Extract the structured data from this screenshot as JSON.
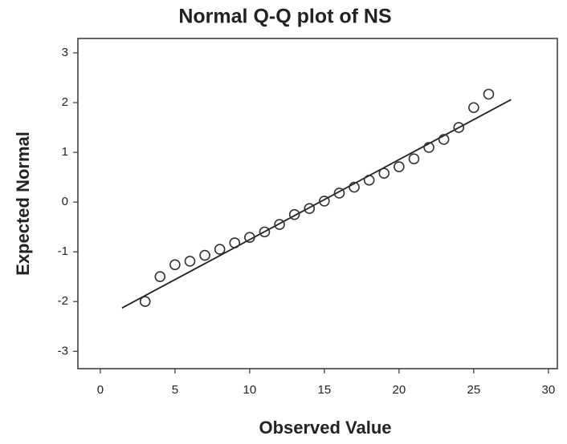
{
  "chart_data": {
    "type": "scatter",
    "title": "Normal Q-Q plot of NS",
    "x_label": "Observed Value",
    "y_label": "Expected Normal",
    "x": [
      3,
      4,
      5,
      6,
      7,
      8,
      9,
      10,
      11,
      12,
      13,
      14,
      15,
      16,
      17,
      18,
      19,
      20,
      21,
      22,
      23,
      24,
      25,
      26
    ],
    "values": [
      -2.0,
      -1.5,
      -1.26,
      -1.19,
      -1.07,
      -0.95,
      -0.82,
      -0.71,
      -0.6,
      -0.45,
      -0.25,
      -0.13,
      0.02,
      0.18,
      0.3,
      0.44,
      0.58,
      0.71,
      0.87,
      1.1,
      1.26,
      1.5,
      1.9,
      2.17
    ],
    "color": "#333333",
    "reference_line": {
      "x": [
        1.45,
        27.5
      ],
      "y": [
        -2.13,
        2.06
      ],
      "color": "#222222"
    },
    "xlim": [
      -1.5,
      30.6
    ],
    "xticks": [
      0,
      5,
      10,
      15,
      20,
      25,
      30
    ],
    "ylim": [
      -3.35,
      3.29
    ],
    "yticks": [
      -3,
      -2,
      -1,
      0,
      1,
      2,
      3
    ],
    "grid": false
  }
}
